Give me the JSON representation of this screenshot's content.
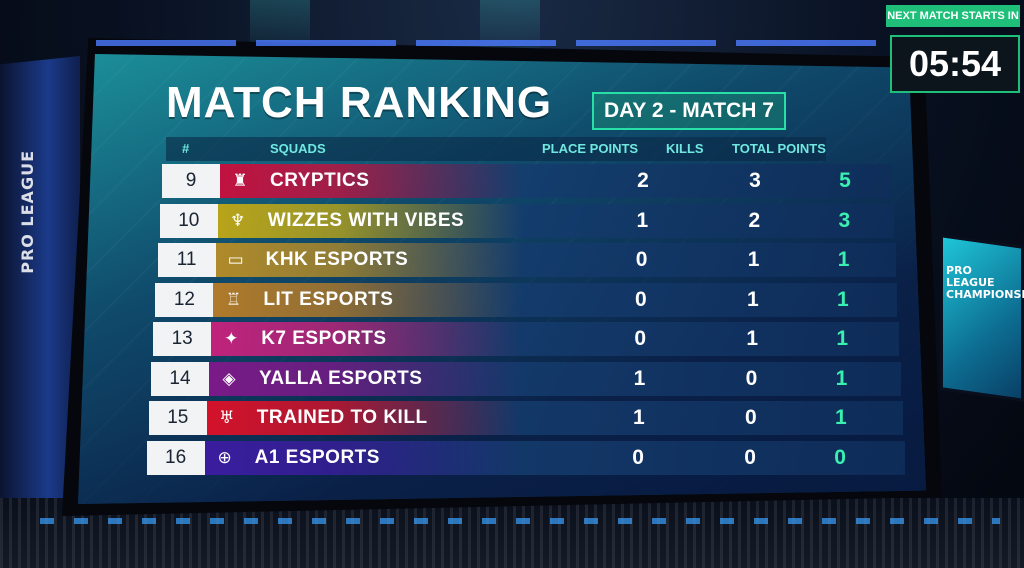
{
  "title": "MATCH RANKING",
  "day_match": "DAY 2 - MATCH 7",
  "side_banner_left": "PRO LEAGUE",
  "side_banner_right": "PRO LEAGUE CHAMPIONSHIP",
  "timer": {
    "label": "NEXT MATCH STARTS IN",
    "value": "05:54"
  },
  "table": {
    "headers": {
      "rank": "#",
      "squads": "SQUADS",
      "place_points": "PLACE POINTS",
      "kills": "KILLS",
      "total_points": "TOTAL POINTS"
    },
    "rows": [
      {
        "rank": "9",
        "team": "CRYPTICS",
        "place": "2",
        "kills": "3",
        "total": "5",
        "logo": "castle-icon"
      },
      {
        "rank": "10",
        "team": "WIZZES WITH VIBES",
        "place": "1",
        "kills": "2",
        "total": "3",
        "logo": "horns-icon"
      },
      {
        "rank": "11",
        "team": "KHK ESPORTS",
        "place": "0",
        "kills": "1",
        "total": "1",
        "logo": "khk-icon"
      },
      {
        "rank": "12",
        "team": "LIT ESPORTS",
        "place": "0",
        "kills": "1",
        "total": "1",
        "logo": "lit-icon"
      },
      {
        "rank": "13",
        "team": "K7 ESPORTS",
        "place": "0",
        "kills": "1",
        "total": "1",
        "logo": "wolf-icon"
      },
      {
        "rank": "14",
        "team": "YALLA ESPORTS",
        "place": "1",
        "kills": "0",
        "total": "1",
        "logo": "diamond-icon"
      },
      {
        "rank": "15",
        "team": "TRAINED TO KILL",
        "place": "1",
        "kills": "0",
        "total": "1",
        "logo": "wings-icon"
      },
      {
        "rank": "16",
        "team": "A1 ESPORTS",
        "place": "0",
        "kills": "0",
        "total": "0",
        "logo": "a1-icon"
      }
    ]
  },
  "colors": {
    "accent_green": "#1fbf7a",
    "total_green": "#39f0b0",
    "row_colors": [
      "#c1123f",
      "#b8a41a",
      "#b08a2a",
      "#b07a2a",
      "#c0237c",
      "#7a1a88",
      "#d4122a",
      "#3a1d9e"
    ]
  }
}
